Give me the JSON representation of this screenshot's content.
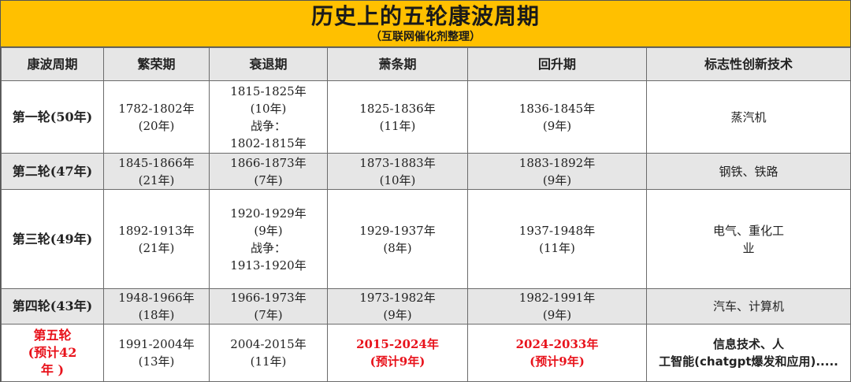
{
  "title": "历史上的五轮康波周期",
  "subtitle": "（互联网催化剂整理）",
  "headers": [
    "康波周期",
    "繁荣期",
    "衰退期",
    "萧条期",
    "回升期",
    "标志性创新技术"
  ],
  "rows": [
    {
      "cycle": "第一轮(50年)",
      "prosperity": "1782-1802年\n(20年)",
      "recession": "1815-1825年\n(10年)\n战争：\n1802-1815年",
      "depression": "1825-1836年\n(11年)",
      "recovery": "1836-1845年\n(9年)",
      "tech": "蒸汽机"
    },
    {
      "cycle": "第二轮(47年)",
      "prosperity": "1845-1866年\n(21年)",
      "recession": "1866-1873年\n(7年)",
      "depression": "1873-1883年\n(10年)",
      "recovery": "1883-1892年\n(9年)",
      "tech": "钢铁、铁路"
    },
    {
      "cycle": "第三轮(49年)",
      "prosperity": "1892-1913年\n(21年)",
      "recession": "1920-1929年\n(9年)\n战争：\n1913-1920年",
      "depression": "1929-1937年\n(8年)",
      "recovery": "1937-1948年\n(11年)",
      "tech": "电气、重化工\n业"
    },
    {
      "cycle": "第四轮(43年)",
      "prosperity": "1948-1966年\n(18年)",
      "recession": "1966-1973年\n(7年)",
      "depression": "1973-1982年\n(9年)",
      "recovery": "1982-1991年\n(9年)",
      "tech": "汽车、计算机"
    },
    {
      "cycle": "第五轮\n(预计42\n年 )",
      "prosperity": "1991-2004年\n(13年)",
      "recession": "2004-2015年\n(11年)",
      "depression": "2015-2024年\n(预计9年)",
      "recovery": "2024-2033年\n(预计9年)",
      "tech_line1": "信息技术、人",
      "tech_line2": "工智能(chatgpt爆发和应用)....."
    }
  ],
  "colors": {
    "title_band": "#ffc000",
    "highlight_red": "#e8121b",
    "shaded_row": "#e6e6e6"
  }
}
